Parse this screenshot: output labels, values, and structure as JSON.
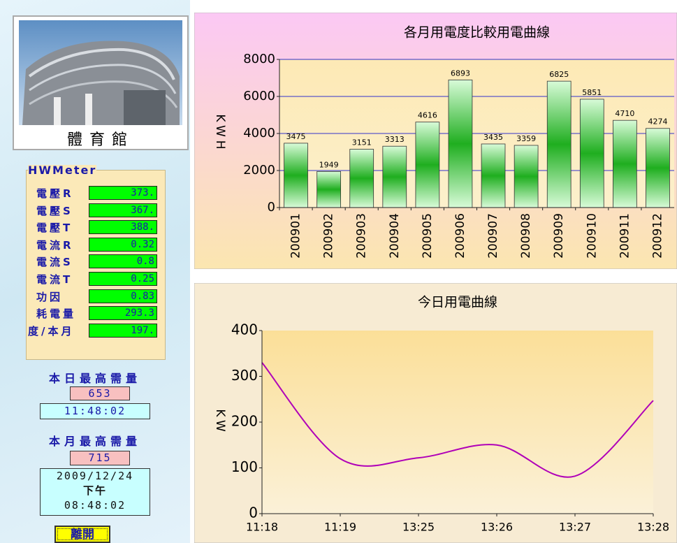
{
  "sidebar": {
    "photo_caption": "體育館",
    "meter": {
      "title": "HWMeter",
      "rows": [
        {
          "label": "電壓R",
          "value": "373."
        },
        {
          "label": "電壓S",
          "value": "367."
        },
        {
          "label": "電壓T",
          "value": "388."
        },
        {
          "label": "電流R",
          "value": "0.32"
        },
        {
          "label": "電流S",
          "value": "0.8"
        },
        {
          "label": "電流T",
          "value": "0.25"
        },
        {
          "label": "功因",
          "value": "0.83"
        },
        {
          "label": "耗電量",
          "value": "293.3"
        },
        {
          "label": "度/本月",
          "value": "197."
        }
      ]
    },
    "daily_peak": {
      "title": "本日最高需量",
      "value": "653",
      "time": "11:48:02"
    },
    "monthly_peak": {
      "title": "本月最高需量",
      "value": "715",
      "date": "2009/12/24",
      "period": "下午",
      "time": "08:48:02"
    },
    "exit_button": "離開"
  },
  "chart_data": [
    {
      "type": "bar",
      "title": "各月用電度比較用電曲線",
      "y_label": "KWH",
      "categories": [
        "200901",
        "200902",
        "200903",
        "200904",
        "200905",
        "200906",
        "200907",
        "200908",
        "200909",
        "200910",
        "200911",
        "200912"
      ],
      "values": [
        3475,
        1949,
        3151,
        3313,
        4616,
        6893,
        3435,
        3359,
        6825,
        5851,
        4710,
        4274
      ],
      "color": "#1fae1f",
      "ylim": [
        0,
        8000
      ],
      "yticks": [
        0,
        2000,
        4000,
        6000,
        8000
      ],
      "grid": true
    },
    {
      "type": "line",
      "title": "今日用電曲線",
      "y_label": "KW",
      "categories": [
        "11:18",
        "11:19",
        "13:25",
        "13:26",
        "13:27",
        "13:28"
      ],
      "values": [
        330,
        120,
        122,
        150,
        82,
        247
      ],
      "color": "#b000b8",
      "ylim": [
        0,
        400
      ],
      "yticks": [
        0,
        100,
        200,
        300,
        400
      ],
      "grid": false
    }
  ]
}
